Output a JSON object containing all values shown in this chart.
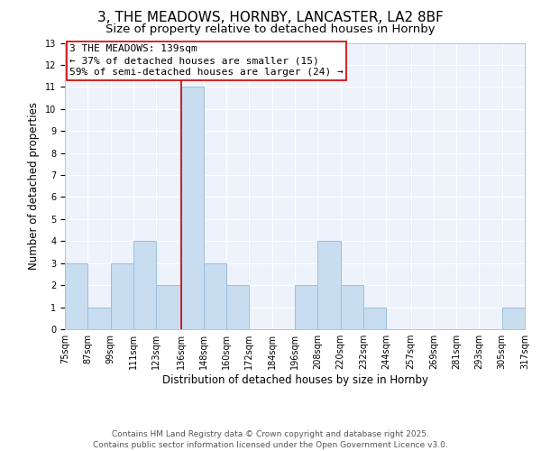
{
  "title": "3, THE MEADOWS, HORNBY, LANCASTER, LA2 8BF",
  "subtitle": "Size of property relative to detached houses in Hornby",
  "xlabel": "Distribution of detached houses by size in Hornby",
  "ylabel": "Number of detached properties",
  "bar_color": "#c8ddf0",
  "bar_edge_color": "#9bbedd",
  "background_color": "#eef2fb",
  "grid_color": "#ffffff",
  "vline_color": "#cc0000",
  "vline_x": 136,
  "bin_edges": [
    75,
    87,
    99,
    111,
    123,
    136,
    148,
    160,
    172,
    184,
    196,
    208,
    220,
    232,
    244,
    257,
    269,
    281,
    293,
    305,
    317
  ],
  "bin_labels": [
    "75sqm",
    "87sqm",
    "99sqm",
    "111sqm",
    "123sqm",
    "136sqm",
    "148sqm",
    "160sqm",
    "172sqm",
    "184sqm",
    "196sqm",
    "208sqm",
    "220sqm",
    "232sqm",
    "244sqm",
    "257sqm",
    "269sqm",
    "281sqm",
    "293sqm",
    "305sqm",
    "317sqm"
  ],
  "counts": [
    3,
    1,
    3,
    4,
    2,
    11,
    3,
    2,
    0,
    0,
    2,
    4,
    2,
    1,
    0,
    0,
    0,
    0,
    0,
    1
  ],
  "ylim": [
    0,
    13
  ],
  "yticks": [
    0,
    1,
    2,
    3,
    4,
    5,
    6,
    7,
    8,
    9,
    10,
    11,
    12,
    13
  ],
  "annotation_title": "3 THE MEADOWS: 139sqm",
  "annotation_line1": "← 37% of detached houses are smaller (15)",
  "annotation_line2": "59% of semi-detached houses are larger (24) →",
  "footer_line1": "Contains HM Land Registry data © Crown copyright and database right 2025.",
  "footer_line2": "Contains public sector information licensed under the Open Government Licence v3.0.",
  "title_fontsize": 11,
  "subtitle_fontsize": 9.5,
  "label_fontsize": 8.5,
  "tick_fontsize": 7,
  "annotation_fontsize": 8,
  "footer_fontsize": 6.5
}
